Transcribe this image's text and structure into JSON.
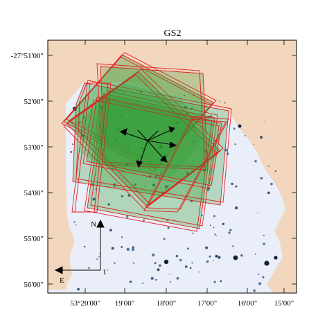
{
  "figure": {
    "title": "GS2",
    "x_tick_labels": [
      "53°20'00\"",
      "19'00\"",
      "18'00\"",
      "17'00\"",
      "16'00\"",
      "15'00\""
    ],
    "y_tick_labels": [
      "-27°51'00\"",
      "52'00\"",
      "53'00\"",
      "54'00\"",
      "55'00\"",
      "56'00\""
    ],
    "compass": {
      "north": "N",
      "east": "E",
      "scale": "1'"
    }
  },
  "colors": {
    "background_field": "#f2d6bd",
    "image_field": "#e8eef8",
    "footprint_outline": "#e02020",
    "footprint_fill": "#2f9a2f"
  }
}
